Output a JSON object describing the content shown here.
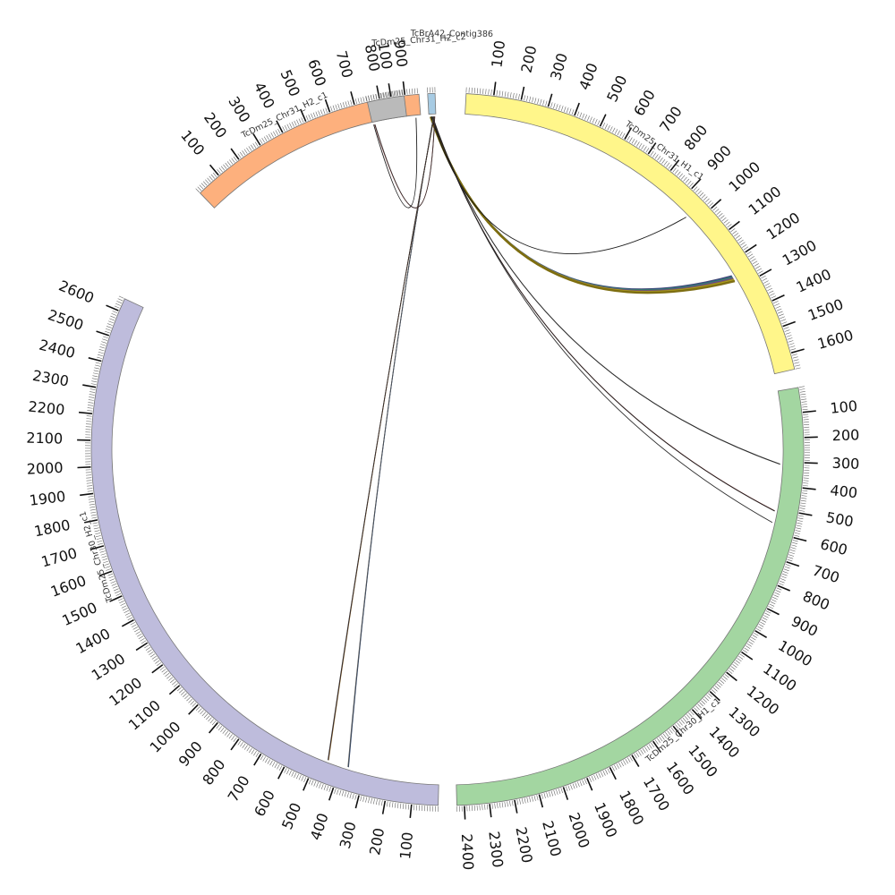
{
  "chart_data": {
    "type": "circos",
    "tick_interval": 100,
    "chromosomes": [
      {
        "name": "TcDm25_Chr31_H1_c1",
        "length": 1660,
        "color": "#fff68a"
      },
      {
        "name": "TcDm25_Chr30_H1_c1",
        "length": 2430,
        "color": "#a3d6a1"
      },
      {
        "name": "TcDm25_Chr30_H2_c1",
        "length": 2650,
        "color": "#bebcdc"
      },
      {
        "name": "TcDm25_Chr31_H2_c1",
        "length": 955,
        "color": "#fdb07d"
      },
      {
        "name": "TcDm25_Chr31_H2_c2",
        "length": 155,
        "color": "#bababa"
      },
      {
        "name": "TcBrA42_Contig386",
        "length": 30,
        "color": "#a7cbe3"
      }
    ],
    "links": [
      {
        "from": "TcBrA42_Contig386",
        "from_pos": 8,
        "to": "TcDm25_Chr31_H1_c1",
        "to_pos": 1260,
        "colors": [
          "#3b3b6b",
          "#2f5c8a",
          "#3c8c5a",
          "#6a3d9a",
          "#8c7b2b",
          "#b2a21b",
          "#7a6a10"
        ],
        "count": 7,
        "width": 14
      },
      {
        "from": "TcBrA42_Contig386",
        "from_pos": 10,
        "to": "TcDm25_Chr31_H1_c1",
        "to_pos": 960,
        "colors": [
          "#111111"
        ],
        "count": 1,
        "width": 0
      },
      {
        "from": "TcBrA42_Contig386",
        "from_pos": 12,
        "to": "TcDm25_Chr30_H1_c1",
        "to_pos": 310,
        "colors": [
          "#111111",
          "#333333"
        ],
        "count": 2,
        "width": 0
      },
      {
        "from": "TcBrA42_Contig386",
        "from_pos": 14,
        "to": "TcDm25_Chr30_H1_c1",
        "to_pos": 510,
        "colors": [
          "#5a1010",
          "#222222"
        ],
        "count": 2,
        "width": 0
      },
      {
        "from": "TcBrA42_Contig386",
        "from_pos": 16,
        "to": "TcDm25_Chr30_H1_c1",
        "to_pos": 560,
        "colors": [
          "#222222"
        ],
        "count": 1,
        "width": 0
      },
      {
        "from": "TcBrA42_Contig386",
        "from_pos": 20,
        "to": "TcDm25_Chr30_H2_c1",
        "to_pos": 370,
        "colors": [
          "#1a2a55",
          "#2a4a6a",
          "#555555"
        ],
        "count": 3,
        "width": 0
      },
      {
        "from": "TcBrA42_Contig386",
        "from_pos": 22,
        "to": "TcDm25_Chr30_H2_c1",
        "to_pos": 455,
        "colors": [
          "#8a7a20",
          "#5a1a1a",
          "#333333"
        ],
        "count": 3,
        "width": 0
      },
      {
        "from": "TcBrA42_Contig386",
        "from_pos": 25,
        "to": "TcDm25_Chr31_H2_c2",
        "to_pos": 10,
        "colors": [
          "#8a1a1a",
          "#333333"
        ],
        "count": 2,
        "width": 0
      },
      {
        "from": "TcDm25_Chr31_H2_c1",
        "from_pos": 935,
        "to": "TcDm25_Chr31_H2_c2",
        "to_pos": 5,
        "colors": [
          "#111111"
        ],
        "count": 1,
        "width": 0
      }
    ]
  }
}
